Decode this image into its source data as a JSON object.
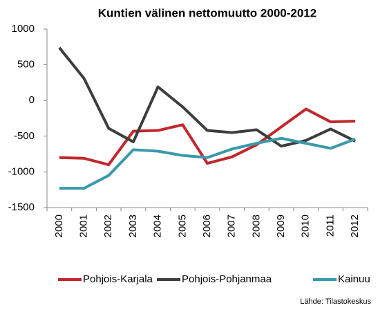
{
  "chart_data": {
    "type": "line",
    "title": "Kuntien välinen nettomuutto 2000-2012",
    "categories": [
      "2000",
      "2001",
      "2002",
      "2003",
      "2004",
      "2005",
      "2006",
      "2007",
      "2008",
      "2009",
      "2010",
      "2011",
      "2012"
    ],
    "series": [
      {
        "name": "Pohjois-Karjala",
        "color": "#c1272d",
        "values": [
          -800,
          -810,
          -900,
          -430,
          -420,
          -340,
          -880,
          -790,
          -620,
          -370,
          -120,
          -300,
          -290
        ]
      },
      {
        "name": "Pohjois-Pohjanmaa",
        "color": "#3d3d3d",
        "values": [
          740,
          310,
          -390,
          -580,
          190,
          -90,
          -420,
          -450,
          -410,
          -640,
          -560,
          -400,
          -570
        ]
      },
      {
        "name": "Kainuu",
        "color": "#3a99ab",
        "values": [
          -1230,
          -1230,
          -1050,
          -690,
          -710,
          -770,
          -800,
          -680,
          -600,
          -530,
          -600,
          -670,
          -540
        ]
      }
    ],
    "ylim": [
      -1500,
      1000
    ],
    "yticks": [
      1000,
      500,
      0,
      -500,
      -1000,
      -1500
    ],
    "grid": false,
    "legend": "bottom",
    "source": "Lähde: Tilastokeskus"
  }
}
